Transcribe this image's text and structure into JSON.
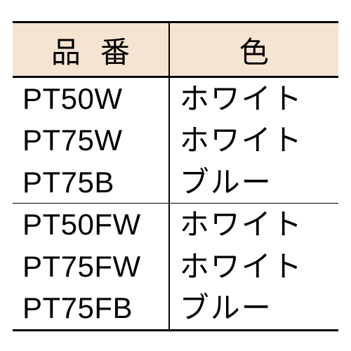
{
  "table": {
    "type": "table",
    "header_background": "#f6e4d3",
    "border_color": "#000000",
    "text_color": "#000000",
    "header_fontsize": 42,
    "cell_fontsize": 42,
    "columns": [
      {
        "key": "code",
        "label": "品番",
        "width_pct": 48,
        "align": "left"
      },
      {
        "key": "color",
        "label": "色",
        "width_pct": 52,
        "align": "left"
      }
    ],
    "groups": [
      {
        "rows": [
          {
            "code": "PT50W",
            "color": "ホワイト"
          },
          {
            "code": "PT75W",
            "color": "ホワイト"
          },
          {
            "code": "PT75B",
            "color": "ブルー"
          }
        ]
      },
      {
        "rows": [
          {
            "code": "PT50FW",
            "color": "ホワイト"
          },
          {
            "code": "PT75FW",
            "color": "ホワイト"
          },
          {
            "code": "PT75FB",
            "color": "ブルー"
          }
        ]
      }
    ]
  }
}
